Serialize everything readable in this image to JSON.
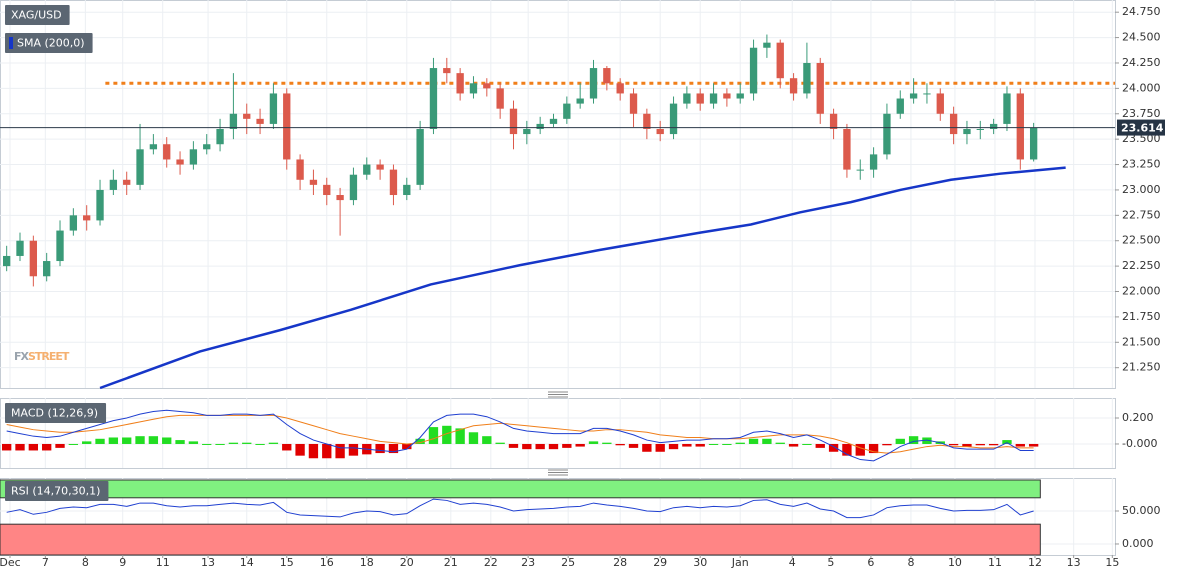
{
  "chart_data": [
    {
      "type": "candlestick",
      "title": "XAG/USD",
      "open": [
        22.25,
        22.35,
        22.5,
        22.15,
        22.3,
        22.6,
        22.75,
        22.7,
        23.0,
        23.1,
        23.05,
        23.4,
        23.45,
        23.3,
        23.25,
        23.4,
        23.45,
        23.6,
        23.75,
        23.7,
        23.65,
        23.95,
        23.3,
        23.1,
        23.05,
        22.95,
        22.9,
        23.15,
        23.25,
        23.2,
        22.95,
        23.05,
        23.6,
        24.2,
        24.15,
        23.95,
        24.05,
        24.0,
        23.8,
        23.55,
        23.6,
        23.65,
        23.7,
        23.85,
        23.9,
        24.2,
        24.05,
        23.95,
        23.75,
        23.6,
        23.55,
        23.85,
        23.95,
        23.85,
        23.95,
        23.9,
        23.95,
        24.4,
        24.45,
        24.1,
        23.95,
        24.25,
        23.75,
        23.6,
        23.2,
        23.2,
        23.35,
        23.75,
        23.9,
        23.95,
        23.95,
        23.75,
        23.55,
        23.6,
        23.6,
        23.65,
        23.95,
        23.3
      ],
      "high": [
        22.45,
        22.58,
        22.55,
        22.38,
        22.7,
        22.82,
        22.85,
        23.1,
        23.2,
        23.18,
        23.65,
        23.55,
        23.52,
        23.38,
        23.48,
        23.55,
        23.7,
        24.15,
        23.85,
        23.8,
        24.05,
        24.0,
        23.35,
        23.2,
        23.12,
        23.02,
        23.22,
        23.32,
        23.3,
        23.25,
        23.12,
        23.68,
        24.3,
        24.3,
        24.2,
        24.12,
        24.1,
        24.05,
        23.88,
        23.68,
        23.72,
        23.75,
        23.92,
        24.05,
        24.28,
        24.22,
        24.1,
        24.0,
        23.8,
        23.68,
        23.92,
        24.02,
        24.0,
        24.05,
        24.0,
        24.05,
        24.48,
        24.53,
        24.48,
        24.15,
        24.45,
        24.3,
        23.8,
        23.65,
        23.3,
        23.42,
        23.85,
        23.98,
        24.1,
        24.05,
        24.0,
        23.82,
        23.68,
        23.68,
        23.7,
        24.02,
        24.0,
        23.66
      ],
      "low": [
        22.2,
        22.3,
        22.05,
        22.1,
        22.25,
        22.55,
        22.6,
        22.65,
        22.95,
        22.95,
        23.0,
        23.35,
        23.22,
        23.15,
        23.2,
        23.35,
        23.38,
        23.5,
        23.55,
        23.55,
        23.6,
        23.2,
        23.0,
        22.95,
        22.85,
        22.55,
        22.85,
        23.1,
        23.1,
        22.85,
        22.9,
        23.0,
        23.55,
        24.05,
        23.88,
        23.9,
        23.92,
        23.7,
        23.4,
        23.45,
        23.55,
        23.62,
        23.65,
        23.8,
        23.85,
        23.98,
        23.88,
        23.62,
        23.5,
        23.48,
        23.5,
        23.8,
        23.78,
        23.8,
        23.82,
        23.85,
        23.88,
        24.3,
        24.0,
        23.88,
        23.9,
        23.65,
        23.5,
        23.12,
        23.1,
        23.12,
        23.3,
        23.7,
        23.85,
        23.85,
        23.68,
        23.45,
        23.45,
        23.5,
        23.55,
        23.58,
        23.2,
        23.28
      ],
      "close": [
        22.35,
        22.5,
        22.15,
        22.3,
        22.6,
        22.75,
        22.7,
        23.0,
        23.1,
        23.05,
        23.4,
        23.45,
        23.3,
        23.25,
        23.4,
        23.45,
        23.6,
        23.75,
        23.7,
        23.65,
        23.95,
        23.3,
        23.1,
        23.05,
        22.95,
        22.9,
        23.15,
        23.25,
        23.2,
        22.95,
        23.05,
        23.6,
        24.2,
        24.15,
        23.95,
        24.05,
        24.0,
        23.8,
        23.55,
        23.6,
        23.65,
        23.7,
        23.85,
        23.9,
        24.2,
        24.05,
        23.95,
        23.75,
        23.6,
        23.55,
        23.85,
        23.95,
        23.85,
        23.95,
        23.9,
        23.95,
        24.4,
        24.45,
        24.1,
        23.95,
        24.25,
        23.75,
        23.6,
        23.2,
        23.2,
        23.35,
        23.75,
        23.9,
        23.95,
        23.95,
        23.75,
        23.55,
        23.6,
        23.6,
        23.65,
        23.95,
        23.3,
        23.61
      ],
      "up_color": "#3a9a78",
      "down_color": "#dc5a4c",
      "series": [
        {
          "name": "SMA (200,0)",
          "color": "#1636c8",
          "x": [
            7.5,
            15,
            21,
            26.3,
            32.3,
            39,
            45,
            52.5,
            56.3,
            60,
            63.8,
            67.5,
            71.3,
            75,
            79.9
          ],
          "values": [
            21.05,
            21.41,
            21.62,
            21.82,
            22.07,
            22.26,
            22.41,
            22.58,
            22.66,
            22.78,
            22.88,
            23.0,
            23.1,
            23.16,
            23.22
          ]
        }
      ],
      "resistance": {
        "value": 24.05,
        "from": 7.9,
        "color": "#f07f1a"
      },
      "last_price": 23.614,
      "watermark": [
        "FX",
        "STREET"
      ],
      "xlim": [
        0,
        83.6
      ],
      "ylim": [
        21.05,
        24.87
      ],
      "yticks": [
        {
          "value": 21.25,
          "label": "21.250"
        },
        {
          "value": 21.5,
          "label": "21.500"
        },
        {
          "value": 21.75,
          "label": "21.750"
        },
        {
          "value": 22.0,
          "label": "22.000"
        },
        {
          "value": 22.25,
          "label": "22.250"
        },
        {
          "value": 22.5,
          "label": "22.500"
        },
        {
          "value": 22.75,
          "label": "22.750"
        },
        {
          "value": 23.0,
          "label": "23.000"
        },
        {
          "value": 23.25,
          "label": "23.250"
        },
        {
          "value": 23.5,
          "label": "23.500"
        },
        {
          "value": 23.75,
          "label": "23.750"
        },
        {
          "value": 24.0,
          "label": "24.000"
        },
        {
          "value": 24.25,
          "label": "24.250"
        },
        {
          "value": 24.5,
          "label": "24.500"
        },
        {
          "value": 24.75,
          "label": "24.750"
        }
      ],
      "grid": true
    },
    {
      "type": "macd",
      "title": "MACD (12,26,9)",
      "histogram": [
        -0.05,
        -0.05,
        -0.05,
        -0.05,
        -0.03,
        0,
        0.02,
        0.04,
        0.05,
        0.05,
        0.06,
        0.06,
        0.05,
        0.03,
        0.02,
        0,
        0,
        0.01,
        0.01,
        0,
        0.01,
        -0.05,
        -0.09,
        -0.11,
        -0.11,
        -0.11,
        -0.09,
        -0.08,
        -0.07,
        -0.07,
        -0.04,
        0.04,
        0.13,
        0.14,
        0.12,
        0.09,
        0.06,
        0.01,
        -0.03,
        -0.04,
        -0.04,
        -0.04,
        -0.03,
        -0.02,
        0.02,
        0.01,
        -0.01,
        -0.03,
        -0.06,
        -0.06,
        -0.04,
        -0.02,
        -0.02,
        0,
        0,
        0.01,
        0.04,
        0.04,
        0.01,
        -0.02,
        0,
        -0.03,
        -0.06,
        -0.09,
        -0.09,
        -0.07,
        -0.01,
        0.04,
        0.06,
        0.05,
        0.02,
        -0.01,
        -0.02,
        -0.01,
        -0.01,
        0.03,
        -0.02,
        -0.02
      ],
      "macd": [
        0.1,
        0.08,
        0.06,
        0.05,
        0.06,
        0.09,
        0.12,
        0.15,
        0.18,
        0.2,
        0.23,
        0.25,
        0.26,
        0.25,
        0.24,
        0.22,
        0.22,
        0.23,
        0.23,
        0.22,
        0.23,
        0.15,
        0.08,
        0.03,
        0,
        -0.03,
        -0.03,
        -0.04,
        -0.05,
        -0.06,
        -0.04,
        0.05,
        0.17,
        0.22,
        0.23,
        0.23,
        0.21,
        0.17,
        0.12,
        0.1,
        0.09,
        0.08,
        0.08,
        0.08,
        0.12,
        0.12,
        0.1,
        0.07,
        0.03,
        0.01,
        0.02,
        0.03,
        0.03,
        0.04,
        0.04,
        0.05,
        0.09,
        0.1,
        0.08,
        0.05,
        0.07,
        0.03,
        -0.02,
        -0.08,
        -0.12,
        -0.13,
        -0.08,
        -0.02,
        0.02,
        0.03,
        0.01,
        -0.03,
        -0.04,
        -0.04,
        -0.04,
        0.01,
        -0.05,
        -0.05
      ],
      "signal": [
        0.15,
        0.13,
        0.11,
        0.1,
        0.09,
        0.09,
        0.1,
        0.11,
        0.13,
        0.15,
        0.17,
        0.19,
        0.21,
        0.22,
        0.22,
        0.22,
        0.22,
        0.22,
        0.22,
        0.22,
        0.22,
        0.2,
        0.17,
        0.14,
        0.11,
        0.08,
        0.06,
        0.04,
        0.02,
        0.01,
        0,
        0.01,
        0.04,
        0.08,
        0.11,
        0.14,
        0.15,
        0.16,
        0.15,
        0.14,
        0.13,
        0.12,
        0.11,
        0.1,
        0.1,
        0.11,
        0.11,
        0.1,
        0.09,
        0.07,
        0.06,
        0.05,
        0.05,
        0.04,
        0.04,
        0.04,
        0.05,
        0.06,
        0.07,
        0.07,
        0.07,
        0.06,
        0.04,
        0.01,
        -0.03,
        -0.06,
        -0.07,
        -0.06,
        -0.04,
        -0.02,
        -0.01,
        -0.02,
        -0.02,
        -0.03,
        -0.03,
        -0.02,
        -0.03,
        -0.03
      ],
      "macd_color": "#1f3fd0",
      "signal_color": "#f07f1a",
      "hist_up_color": "#22dd22",
      "hist_down_color": "#e00000",
      "xlim": [
        0,
        83.6
      ],
      "ylim": [
        -0.185,
        0.354
      ],
      "yticks": [
        {
          "value": 0.2,
          "label": "0.200"
        },
        {
          "value": 0,
          "label": "-0.000"
        }
      ],
      "grid": true
    },
    {
      "type": "line",
      "title": "RSI (14,70,30,1)",
      "values": [
        48,
        52,
        45,
        48,
        54,
        56,
        55,
        60,
        60,
        57,
        62,
        62,
        58,
        56,
        58,
        58,
        60,
        62,
        60,
        59,
        63,
        48,
        44,
        43,
        42,
        41,
        47,
        50,
        49,
        44,
        46,
        58,
        68,
        66,
        60,
        62,
        60,
        56,
        50,
        52,
        53,
        54,
        56,
        57,
        62,
        59,
        57,
        54,
        50,
        49,
        55,
        57,
        55,
        57,
        56,
        58,
        66,
        67,
        60,
        57,
        62,
        53,
        50,
        40,
        40,
        44,
        55,
        58,
        59,
        59,
        54,
        50,
        51,
        51,
        52,
        60,
        44,
        50
      ],
      "color": "#2040d0",
      "overbought": 70,
      "oversold": 30,
      "overbought_color": "#80f080",
      "oversold_color": "#ff8585",
      "xlim": [
        0,
        83.6
      ],
      "ylim": [
        -16.7,
        100
      ],
      "yticks": [
        {
          "value": 50,
          "label": "50.000"
        },
        {
          "value": 0,
          "label": "0.000"
        }
      ],
      "xticks": [
        {
          "value": 0.75,
          "label": "Dec"
        },
        {
          "value": 3.4,
          "label": "7"
        },
        {
          "value": 6.4,
          "label": "8"
        },
        {
          "value": 9.2,
          "label": "9"
        },
        {
          "value": 12.2,
          "label": "11"
        },
        {
          "value": 15.6,
          "label": "13"
        },
        {
          "value": 18.5,
          "label": "14"
        },
        {
          "value": 21.5,
          "label": "15"
        },
        {
          "value": 24.5,
          "label": "16"
        },
        {
          "value": 27.5,
          "label": "18"
        },
        {
          "value": 30.5,
          "label": "20"
        },
        {
          "value": 33.8,
          "label": "21"
        },
        {
          "value": 36.8,
          "label": "22"
        },
        {
          "value": 39.6,
          "label": "23"
        },
        {
          "value": 42.6,
          "label": "25"
        },
        {
          "value": 46.5,
          "label": "28"
        },
        {
          "value": 49.5,
          "label": "29"
        },
        {
          "value": 52.5,
          "label": "30"
        },
        {
          "value": 55.5,
          "label": "Jan"
        },
        {
          "value": 59.4,
          "label": "4"
        },
        {
          "value": 62.3,
          "label": "5"
        },
        {
          "value": 65.3,
          "label": "6"
        },
        {
          "value": 68.3,
          "label": "8"
        },
        {
          "value": 71.6,
          "label": "10"
        },
        {
          "value": 74.6,
          "label": "11"
        },
        {
          "value": 77.6,
          "label": "12"
        },
        {
          "value": 80.5,
          "label": "13"
        },
        {
          "value": 83.4,
          "label": "15"
        }
      ],
      "grid": true
    }
  ]
}
